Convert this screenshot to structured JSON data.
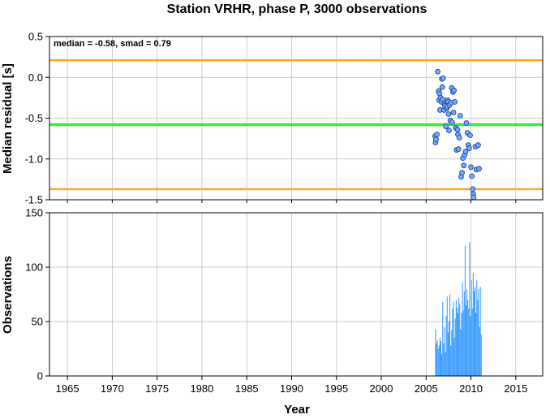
{
  "title": "Station VRHR, phase P, 3000 observations",
  "annotation": "median = -0.58, smad = 0.79",
  "xlabel": "Year",
  "colors": {
    "median_line": "#33ee33",
    "smad_lines": "#ffaa22",
    "points_fill": "#6fa6ff",
    "points_stroke": "#1f3f8f",
    "bars": "#3399ff",
    "grid": "#bbbbbb"
  },
  "chart_data": [
    {
      "type": "scatter",
      "ylabel": "Median residual [s]",
      "xlim": [
        1963,
        2018
      ],
      "ylim": [
        -1.5,
        0.5
      ],
      "x_ticks": [
        1965,
        1970,
        1975,
        1980,
        1985,
        1990,
        1995,
        2000,
        2005,
        2010,
        2015
      ],
      "y_ticks": [
        0.5,
        0.0,
        -0.5,
        -1.0,
        -1.5
      ],
      "y_tick_labels": [
        "0.5",
        "0.0",
        "-0.5",
        "-1.0",
        "-1.5"
      ],
      "grid": true,
      "hlines": [
        {
          "y": 0.21,
          "role": "median + smad"
        },
        {
          "y": -0.58,
          "role": "median"
        },
        {
          "y": -1.37,
          "role": "median - smad"
        }
      ],
      "points": [
        [
          2006.0,
          -0.72
        ],
        [
          2006.05,
          -0.8
        ],
        [
          2006.1,
          -0.76
        ],
        [
          2006.2,
          -0.7
        ],
        [
          2006.3,
          0.07
        ],
        [
          2006.4,
          -0.17
        ],
        [
          2006.45,
          -0.28
        ],
        [
          2006.5,
          -0.2
        ],
        [
          2006.55,
          -0.4
        ],
        [
          2006.6,
          -0.25
        ],
        [
          2006.7,
          -0.3
        ],
        [
          2006.75,
          -0.02
        ],
        [
          2006.8,
          -0.12
        ],
        [
          2006.85,
          -0.27
        ],
        [
          2006.9,
          -0.01
        ],
        [
          2007.0,
          -0.4
        ],
        [
          2007.05,
          -0.33
        ],
        [
          2007.1,
          -0.35
        ],
        [
          2007.2,
          -0.6
        ],
        [
          2007.3,
          -0.38
        ],
        [
          2007.35,
          -0.36
        ],
        [
          2007.4,
          -0.28
        ],
        [
          2007.45,
          -0.3
        ],
        [
          2007.5,
          -0.45
        ],
        [
          2007.55,
          -0.65
        ],
        [
          2007.6,
          -0.34
        ],
        [
          2007.7,
          -0.53
        ],
        [
          2007.8,
          -0.31
        ],
        [
          2007.85,
          -0.13
        ],
        [
          2007.9,
          -0.55
        ],
        [
          2008.0,
          -0.18
        ],
        [
          2008.05,
          -0.43
        ],
        [
          2008.1,
          -0.16
        ],
        [
          2008.2,
          -0.3
        ],
        [
          2008.3,
          -0.62
        ],
        [
          2008.4,
          -0.89
        ],
        [
          2008.5,
          -0.64
        ],
        [
          2008.55,
          -0.7
        ],
        [
          2008.6,
          -0.88
        ],
        [
          2008.7,
          -0.74
        ],
        [
          2008.8,
          -0.47
        ],
        [
          2008.9,
          -1.22
        ],
        [
          2009.0,
          -1.17
        ],
        [
          2009.1,
          -0.99
        ],
        [
          2009.2,
          -1.08
        ],
        [
          2009.3,
          -0.95
        ],
        [
          2009.4,
          -0.91
        ],
        [
          2009.5,
          -0.56
        ],
        [
          2009.6,
          -0.68
        ],
        [
          2009.7,
          -0.83
        ],
        [
          2009.8,
          -0.87
        ],
        [
          2009.9,
          -0.71
        ],
        [
          2010.0,
          -1.1
        ],
        [
          2010.1,
          -1.21
        ],
        [
          2010.2,
          -1.37
        ],
        [
          2010.25,
          -1.43
        ],
        [
          2010.3,
          -1.47
        ],
        [
          2010.5,
          -0.85
        ],
        [
          2010.6,
          -1.13
        ],
        [
          2010.8,
          -0.83
        ],
        [
          2010.9,
          -1.12
        ]
      ]
    },
    {
      "type": "bar",
      "ylabel": "Observations",
      "xlabel": "Year",
      "xlim": [
        1963,
        2018
      ],
      "ylim": [
        0,
        150
      ],
      "x_ticks": [
        1965,
        1970,
        1975,
        1980,
        1985,
        1990,
        1995,
        2000,
        2005,
        2010,
        2015
      ],
      "x_tick_labels": [
        "1965",
        "1970",
        "1975",
        "1980",
        "1985",
        "1990",
        "1995",
        "2000",
        "2005",
        "2010",
        "2015"
      ],
      "y_ticks": [
        0,
        50,
        100,
        150
      ],
      "y_tick_labels": [
        "0",
        "50",
        "100",
        "150"
      ],
      "grid": true,
      "x": [
        2006.05,
        2006.15,
        2006.25,
        2006.35,
        2006.45,
        2006.55,
        2006.65,
        2006.75,
        2006.85,
        2006.95,
        2007.05,
        2007.15,
        2007.25,
        2007.35,
        2007.45,
        2007.55,
        2007.65,
        2007.75,
        2007.85,
        2007.95,
        2008.05,
        2008.15,
        2008.25,
        2008.35,
        2008.45,
        2008.55,
        2008.65,
        2008.75,
        2008.85,
        2008.95,
        2009.05,
        2009.15,
        2009.25,
        2009.35,
        2009.45,
        2009.55,
        2009.65,
        2009.75,
        2009.85,
        2009.95,
        2010.05,
        2010.15,
        2010.25,
        2010.35,
        2010.45,
        2010.55,
        2010.65,
        2010.75,
        2010.85,
        2010.95,
        2011.05,
        2011.15
      ],
      "values": [
        43,
        30,
        33,
        25,
        28,
        35,
        32,
        20,
        68,
        30,
        45,
        22,
        55,
        73,
        40,
        50,
        75,
        28,
        42,
        62,
        68,
        35,
        53,
        70,
        63,
        58,
        72,
        66,
        43,
        58,
        86,
        60,
        78,
        120,
        65,
        80,
        70,
        62,
        123,
        55,
        88,
        62,
        95,
        78,
        82,
        58,
        88,
        70,
        80,
        45,
        82,
        38
      ]
    }
  ]
}
